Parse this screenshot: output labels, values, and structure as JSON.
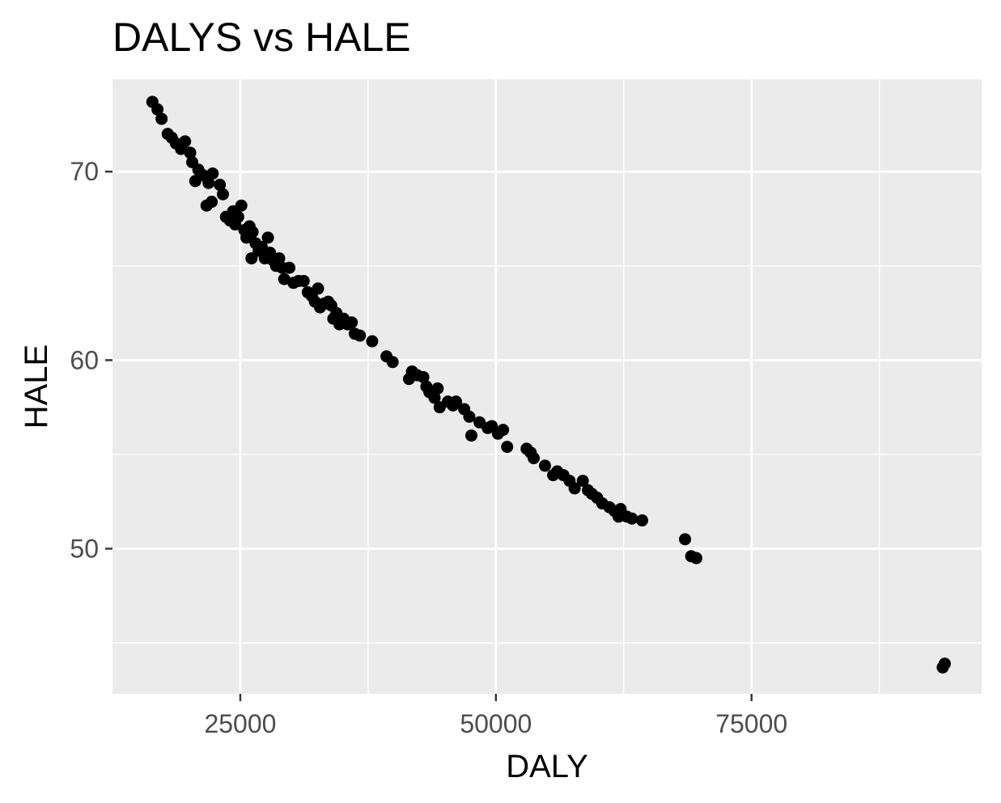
{
  "chart_data": {
    "type": "scatter",
    "title": "DALYS vs HALE",
    "xlabel": "DALY",
    "ylabel": "HALE",
    "xlim": [
      12500,
      97500
    ],
    "ylim": [
      42.3,
      74.9
    ],
    "x_ticks": [
      25000,
      50000,
      75000
    ],
    "x_tick_labels": [
      "25000",
      "50000",
      "75000"
    ],
    "y_ticks": [
      50,
      60,
      70
    ],
    "y_tick_labels": [
      "50",
      "60",
      "70"
    ],
    "grid": true,
    "legend": "none",
    "colors": {
      "panel_background": "#ebebeb",
      "grid": "#ffffff",
      "point": "#000000",
      "tick_label": "#4d4d4d",
      "text": "#000000"
    },
    "points": [
      [
        16400,
        73.7
      ],
      [
        16900,
        73.3
      ],
      [
        17300,
        72.8
      ],
      [
        17900,
        72.0
      ],
      [
        18300,
        71.8
      ],
      [
        18700,
        71.5
      ],
      [
        19200,
        71.2
      ],
      [
        19600,
        71.6
      ],
      [
        20100,
        71.0
      ],
      [
        20300,
        70.5
      ],
      [
        20900,
        70.1
      ],
      [
        20600,
        69.5
      ],
      [
        21400,
        69.8
      ],
      [
        21900,
        69.4
      ],
      [
        22300,
        69.9
      ],
      [
        21700,
        68.2
      ],
      [
        22200,
        68.4
      ],
      [
        23000,
        69.3
      ],
      [
        23300,
        68.8
      ],
      [
        23600,
        67.6
      ],
      [
        24000,
        67.4
      ],
      [
        24300,
        67.9
      ],
      [
        24500,
        67.2
      ],
      [
        24800,
        67.6
      ],
      [
        25100,
        68.2
      ],
      [
        25400,
        66.9
      ],
      [
        25600,
        66.5
      ],
      [
        25900,
        67.1
      ],
      [
        26200,
        66.8
      ],
      [
        26500,
        66.2
      ],
      [
        26100,
        65.4
      ],
      [
        26800,
        65.8
      ],
      [
        27100,
        66.0
      ],
      [
        27400,
        65.4
      ],
      [
        27700,
        66.5
      ],
      [
        27900,
        65.7
      ],
      [
        28200,
        65.3
      ],
      [
        28500,
        65.0
      ],
      [
        28800,
        65.4
      ],
      [
        29100,
        64.9
      ],
      [
        29300,
        64.3
      ],
      [
        29800,
        64.9
      ],
      [
        30200,
        64.1
      ],
      [
        30700,
        64.2
      ],
      [
        31200,
        64.2
      ],
      [
        31600,
        63.6
      ],
      [
        32000,
        63.4
      ],
      [
        32300,
        63.1
      ],
      [
        32600,
        63.8
      ],
      [
        32800,
        62.8
      ],
      [
        33200,
        63.0
      ],
      [
        33600,
        63.1
      ],
      [
        33900,
        62.9
      ],
      [
        34100,
        62.2
      ],
      [
        34400,
        62.5
      ],
      [
        34700,
        61.9
      ],
      [
        35100,
        62.2
      ],
      [
        35500,
        61.9
      ],
      [
        35900,
        62.0
      ],
      [
        36200,
        61.4
      ],
      [
        36700,
        61.3
      ],
      [
        37900,
        61.0
      ],
      [
        39300,
        60.2
      ],
      [
        39900,
        59.9
      ],
      [
        41500,
        59.0
      ],
      [
        41800,
        59.4
      ],
      [
        42300,
        59.2
      ],
      [
        42900,
        59.1
      ],
      [
        43200,
        58.6
      ],
      [
        43500,
        58.3
      ],
      [
        44000,
        58.0
      ],
      [
        44300,
        58.5
      ],
      [
        44500,
        57.5
      ],
      [
        45300,
        57.8
      ],
      [
        45800,
        57.6
      ],
      [
        46100,
        57.8
      ],
      [
        46900,
        57.4
      ],
      [
        47400,
        57.0
      ],
      [
        47600,
        56.0
      ],
      [
        48400,
        56.7
      ],
      [
        49200,
        56.4
      ],
      [
        49600,
        56.5
      ],
      [
        50200,
        56.1
      ],
      [
        50700,
        56.3
      ],
      [
        51100,
        55.4
      ],
      [
        53000,
        55.3
      ],
      [
        53400,
        55.1
      ],
      [
        53700,
        54.8
      ],
      [
        54800,
        54.4
      ],
      [
        55600,
        53.9
      ],
      [
        56000,
        54.1
      ],
      [
        56600,
        53.9
      ],
      [
        57200,
        53.6
      ],
      [
        57700,
        53.2
      ],
      [
        58500,
        53.6
      ],
      [
        59000,
        53.1
      ],
      [
        59400,
        52.9
      ],
      [
        59900,
        52.7
      ],
      [
        60400,
        52.4
      ],
      [
        61100,
        52.2
      ],
      [
        61600,
        52.0
      ],
      [
        62000,
        51.7
      ],
      [
        62200,
        52.1
      ],
      [
        62800,
        51.7
      ],
      [
        63300,
        51.6
      ],
      [
        64300,
        51.5
      ],
      [
        68500,
        50.5
      ],
      [
        69100,
        49.6
      ],
      [
        69600,
        49.5
      ],
      [
        93700,
        43.7
      ],
      [
        93900,
        43.9
      ]
    ]
  }
}
